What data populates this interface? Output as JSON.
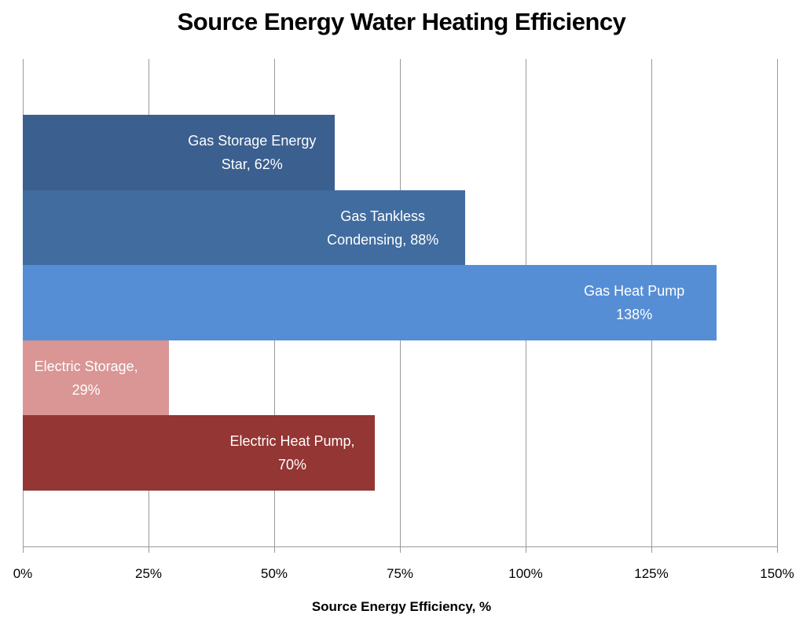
{
  "chart_data": {
    "type": "bar",
    "orientation": "horizontal",
    "title": "Source Energy Water Heating Efficiency",
    "x_label": "Source Energy Efficiency, %",
    "values": [
      62,
      88,
      138,
      29,
      70
    ],
    "value_labels": [
      "Gas Storage Energy\nStar, 62%",
      "Gas Tankless\nCondensing, 88%",
      "Gas Heat Pump\n138%",
      "Electric Storage,\n29%",
      "Electric Heat Pump,\n70%"
    ],
    "colors": [
      "#3b5f8f",
      "#416ca0",
      "#568ed6",
      "#d99694",
      "#943634"
    ],
    "xlim": [
      0,
      150
    ],
    "xticks": [
      {
        "value": 0,
        "label": "0%"
      },
      {
        "value": 25,
        "label": "25%"
      },
      {
        "value": 50,
        "label": "50%"
      },
      {
        "value": 75,
        "label": "75%"
      },
      {
        "value": 100,
        "label": "100%"
      },
      {
        "value": 125,
        "label": "125%"
      },
      {
        "value": 150,
        "label": "150%"
      }
    ],
    "grid": true
  }
}
